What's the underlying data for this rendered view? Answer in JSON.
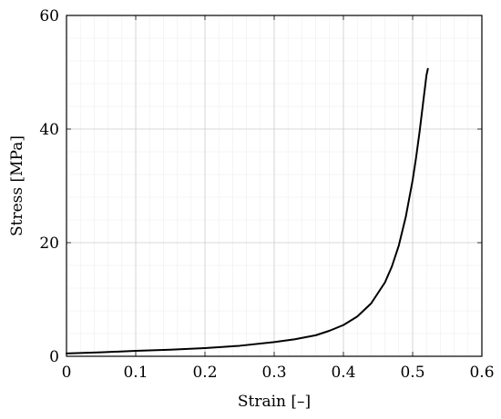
{
  "chart_data": {
    "type": "line",
    "xlabel": "Strain [–]",
    "ylabel": "Stress [MPa]",
    "xlim": [
      0,
      0.6
    ],
    "ylim": [
      0,
      60
    ],
    "x_ticks": [
      0,
      0.1,
      0.2,
      0.3,
      0.4,
      0.5,
      0.6
    ],
    "x_tick_labels": [
      "0",
      "0.1",
      "0.2",
      "0.3",
      "0.4",
      "0.5",
      "0.6"
    ],
    "y_ticks": [
      0,
      20,
      40,
      60
    ],
    "y_tick_labels": [
      "0",
      "20",
      "40",
      "60"
    ],
    "grid": true,
    "minor_grid": true,
    "series": [
      {
        "color": "#000000",
        "x": [
          0,
          0.05,
          0.1,
          0.15,
          0.2,
          0.25,
          0.3,
          0.33,
          0.36,
          0.38,
          0.4,
          0.42,
          0.44,
          0.46,
          0.47,
          0.48,
          0.49,
          0.5,
          0.505,
          0.51,
          0.515,
          0.52,
          0.522
        ],
        "y": [
          0.5,
          0.7,
          0.95,
          1.15,
          1.45,
          1.85,
          2.5,
          3.0,
          3.7,
          4.5,
          5.5,
          7.0,
          9.3,
          13.0,
          15.8,
          19.5,
          24.5,
          31.0,
          35.0,
          39.5,
          44.5,
          49.5,
          50.6
        ]
      }
    ]
  }
}
